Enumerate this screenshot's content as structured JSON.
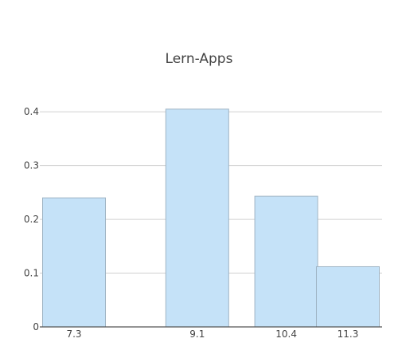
{
  "chart_data": {
    "type": "bar",
    "title": "Lern-Apps",
    "xlabel": "",
    "ylabel": "",
    "categories": [
      "7.3",
      "9.1",
      "10.4",
      "11.3"
    ],
    "x_values": [
      7.3,
      9.1,
      10.4,
      11.3
    ],
    "values": [
      0.24,
      0.405,
      0.243,
      0.112
    ],
    "ylim": [
      0,
      0.43
    ],
    "yticks": [
      0,
      0.1,
      0.2,
      0.3,
      0.4
    ],
    "ytick_labels": [
      "0",
      "0.1",
      "0.2",
      "0.3",
      "0.4"
    ],
    "grid": true,
    "legend": "none",
    "colors": {
      "bar_fill": "#c5e2f8",
      "bar_stroke": "#9fb4c4",
      "grid": "#d0d0d0",
      "axis": "#555555",
      "text": "#444444",
      "title": "#444444"
    }
  }
}
